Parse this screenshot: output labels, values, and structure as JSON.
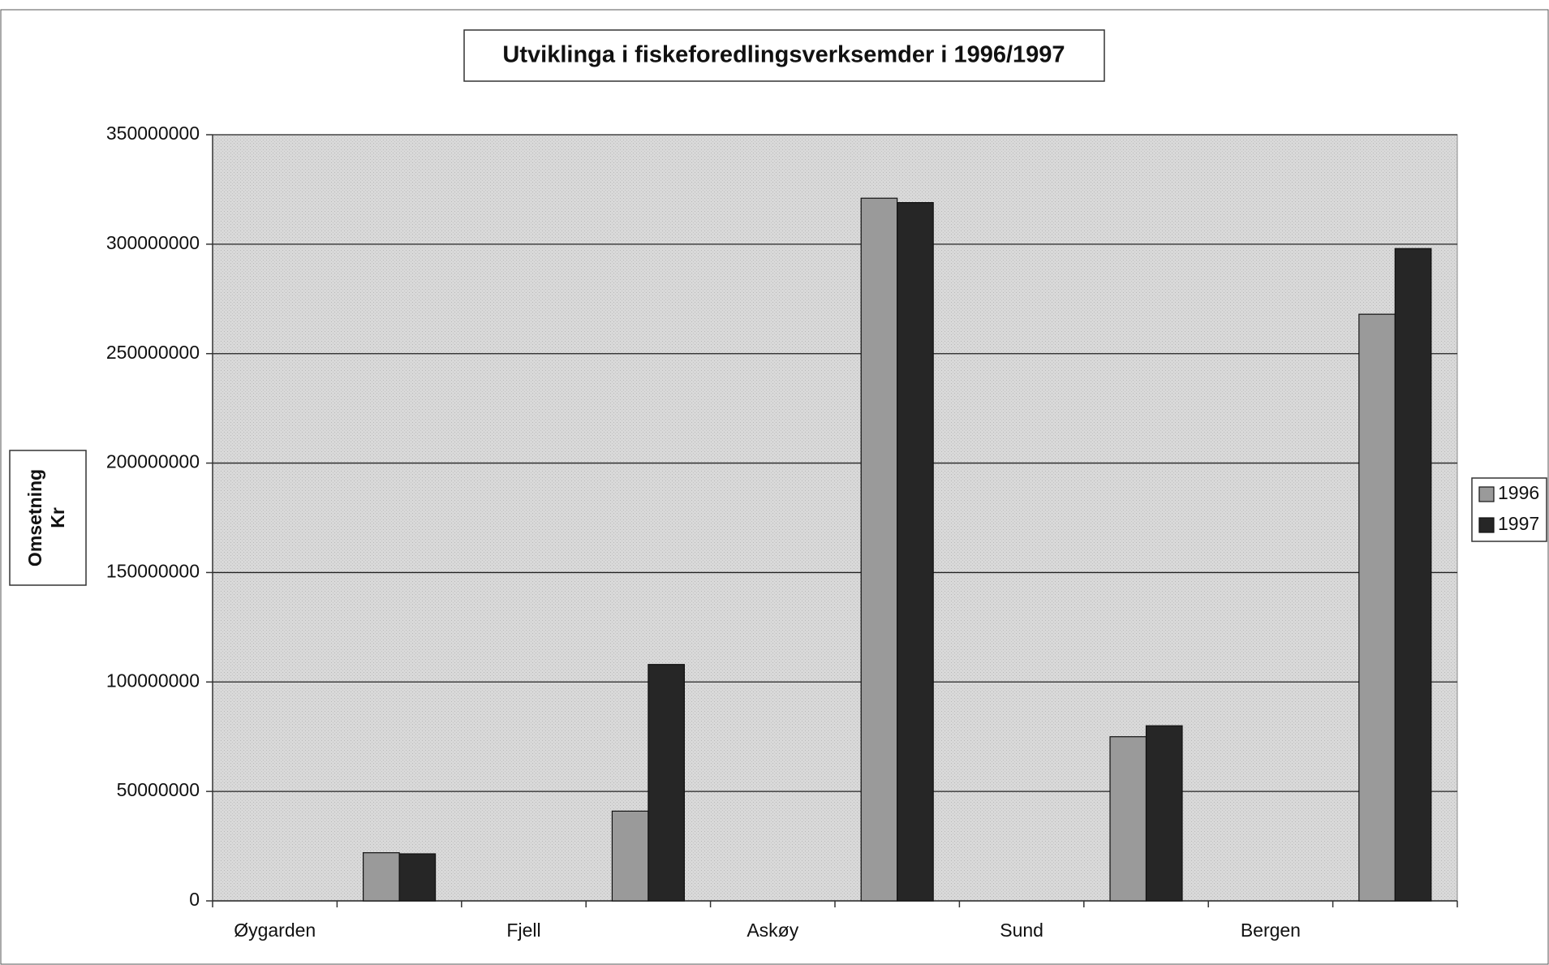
{
  "chart_data": {
    "type": "bar",
    "title": "Utviklinga i fiskeforedlingsverksemder i 1996/1997",
    "ylabel": [
      "Omsetning",
      "Kr"
    ],
    "categories": [
      "Øygarden",
      null,
      "Fjell",
      null,
      "Askøy",
      null,
      "Sund",
      null,
      "Bergen",
      null
    ],
    "series": [
      {
        "name": "1996",
        "color": "#9a9a9a",
        "values": [
          null,
          22000000,
          null,
          41000000,
          null,
          321000000,
          null,
          75000000,
          null,
          268000000
        ]
      },
      {
        "name": "1997",
        "color": "#262626",
        "values": [
          null,
          21500000,
          null,
          108000000,
          null,
          319000000,
          null,
          80000000,
          null,
          298000000
        ]
      }
    ],
    "ylim": [
      0,
      350000000
    ],
    "yticks": [
      0,
      50000000,
      100000000,
      150000000,
      200000000,
      250000000,
      300000000,
      350000000
    ],
    "grid": true,
    "legend": "right"
  }
}
